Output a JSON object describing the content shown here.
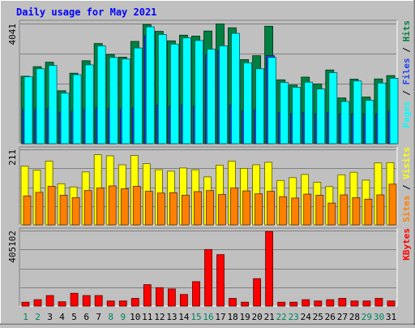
{
  "chart_data": {
    "type": "bar",
    "title": "Daily usage for May 2021",
    "days": [
      "1",
      "2",
      "3",
      "4",
      "5",
      "6",
      "7",
      "8",
      "9",
      "10",
      "11",
      "12",
      "13",
      "14",
      "15",
      "16",
      "17",
      "18",
      "19",
      "20",
      "21",
      "22",
      "23",
      "24",
      "25",
      "26",
      "27",
      "28",
      "29",
      "30",
      "31"
    ],
    "weekend_days": [
      "1",
      "2",
      "8",
      "9",
      "15",
      "16",
      "22",
      "23",
      "29",
      "30"
    ],
    "panels": [
      {
        "id": "top",
        "scale_label": "4041",
        "ymax": 4041,
        "legend": [
          {
            "text": "Pages",
            "color": "#00ffff"
          },
          {
            "text": "Files",
            "color": "#2244ee"
          },
          {
            "text": "Hits",
            "color": "#008040"
          }
        ],
        "series": [
          {
            "name": "Hits",
            "color": "#008040",
            "values": [
              2270,
              2590,
              2740,
              1780,
              2370,
              2790,
              3370,
              3000,
              2910,
              3440,
              4010,
              3780,
              3460,
              3650,
              3620,
              3790,
              4030,
              3900,
              2830,
              2960,
              3950,
              2150,
              1970,
              2240,
              2010,
              2480,
              1540,
              2170,
              1570,
              2180,
              2290
            ]
          },
          {
            "name": "Files",
            "color": "#2244ee",
            "values": [
              1150,
              1150,
              1180,
              1060,
              1090,
              1150,
              1200,
              1180,
              1150,
              1200,
              3630,
              1300,
              1250,
              1300,
              1250,
              2980,
              3120,
              1300,
              1100,
              1150,
              2960,
              1050,
              1000,
              1050,
              1000,
              1050,
              1000,
              1000,
              1000,
              1000,
              1100
            ]
          },
          {
            "name": "Pages",
            "color": "#00ffff",
            "values": [
              2250,
              2520,
              2630,
              1700,
              2320,
              2650,
              3290,
              2900,
              2850,
              3220,
              3930,
              3670,
              3350,
              3560,
              3470,
              3180,
              3290,
              3710,
              2720,
              2520,
              2900,
              2060,
              1900,
              2070,
              1840,
              2390,
              1420,
              2110,
              1460,
              2040,
              2200
            ]
          }
        ]
      },
      {
        "id": "middle",
        "scale_label": "211",
        "ymax": 211,
        "legend": [
          {
            "text": "Sites",
            "color": "#ff8000"
          },
          {
            "text": "Visits",
            "color": "#ffff00"
          }
        ],
        "series": [
          {
            "name": "Visits",
            "color": "#ffff00",
            "values": [
              164,
              153,
              178,
              115,
              106,
              148,
              196,
              193,
              168,
              194,
              171,
              154,
              150,
              159,
              154,
              134,
              167,
              178,
              158,
              168,
              175,
              124,
              132,
              141,
              119,
              107,
              140,
              147,
              125,
              173,
              174
            ]
          },
          {
            "name": "Sites",
            "color": "#ff8000",
            "values": [
              81,
              91,
              108,
              83,
              76,
              96,
              103,
              109,
              101,
              108,
              94,
              89,
              90,
              83,
              93,
              96,
              85,
              103,
              95,
              87,
              94,
              79,
              75,
              86,
              83,
              61,
              84,
              76,
              72,
              84,
              114
            ]
          }
        ]
      },
      {
        "id": "bottom",
        "scale_label": "405102",
        "ymax": 405102,
        "legend": [
          {
            "text": "KBytes",
            "color": "#ff0000"
          }
        ],
        "series": [
          {
            "name": "KBytes",
            "color": "#ff0000",
            "values": [
              20700,
              34500,
              56700,
              23000,
              69000,
              56700,
              56700,
              27600,
              27600,
              41400,
              115000,
              98900,
              92000,
              62100,
              131100,
              303600,
              276000,
              41400,
              20700,
              147200,
              400200,
              20700,
              20700,
              34500,
              27600,
              34500,
              41400,
              27600,
              27600,
              41400,
              27600
            ]
          }
        ]
      }
    ]
  }
}
